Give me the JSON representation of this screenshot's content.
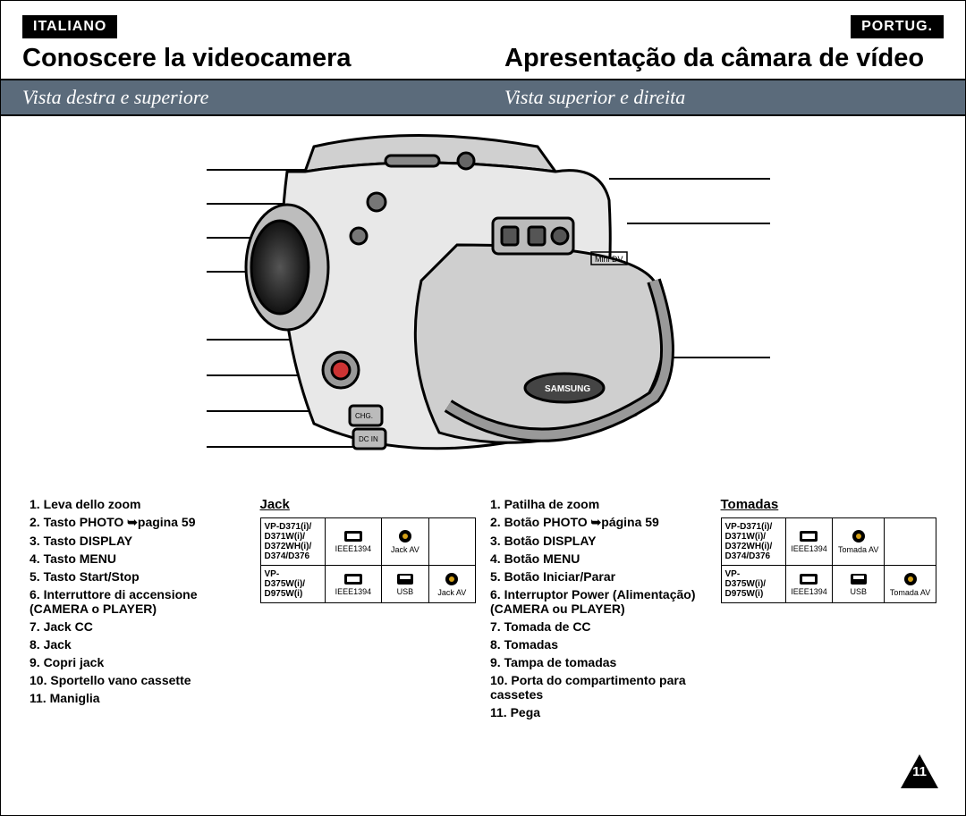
{
  "lang": {
    "left": "ITALIANO",
    "right": "PORTUG."
  },
  "title": {
    "left": "Conoscere la videocamera",
    "right": "Apresentação da câmara de vídeo"
  },
  "subtitle": {
    "left": "Vista destra e superiore",
    "right": "Vista superior e direita"
  },
  "left_list": [
    "1.  Leva dello zoom",
    "2.  Tasto PHOTO ➥pagina 59",
    "3.  Tasto DISPLAY",
    "4.  Tasto MENU",
    "5.  Tasto Start/Stop",
    "6.  Interruttore di accensione (CAMERA o PLAYER)",
    "7.  Jack CC",
    "8.  Jack",
    "9.  Copri jack",
    "10. Sportello vano cassette",
    "11. Maniglia"
  ],
  "right_list": [
    "1.  Patilha de zoom",
    "2.  Botão PHOTO ➥página 59",
    "3.  Botão DISPLAY",
    "4.  Botão MENU",
    "5.  Botão Iniciar/Parar",
    "6.  Interruptor Power (Alimentação) (CAMERA ou PLAYER)",
    "7.  Tomada de CC",
    "8.  Tomadas",
    "9.  Tampa de tomadas",
    "10. Porta do compartimento para cassetes",
    "11. Pega"
  ],
  "jack": {
    "title_left": "Jack",
    "title_right": "Tomadas",
    "row1_models": "VP-D371(i)/\nD371W(i)/\nD372WH(i)/\nD374/D376",
    "row2_models": "VP-\nD375W(i)/\nD975W(i)",
    "labels": {
      "ieee": "IEEE1394",
      "usb": "USB",
      "jackav_left": "Jack AV",
      "jackav_right": "Tomada AV"
    }
  },
  "page_number": "11",
  "colors": {
    "subheader_bg": "#5b6b7b",
    "badge_bg": "#000000",
    "text": "#000000"
  }
}
